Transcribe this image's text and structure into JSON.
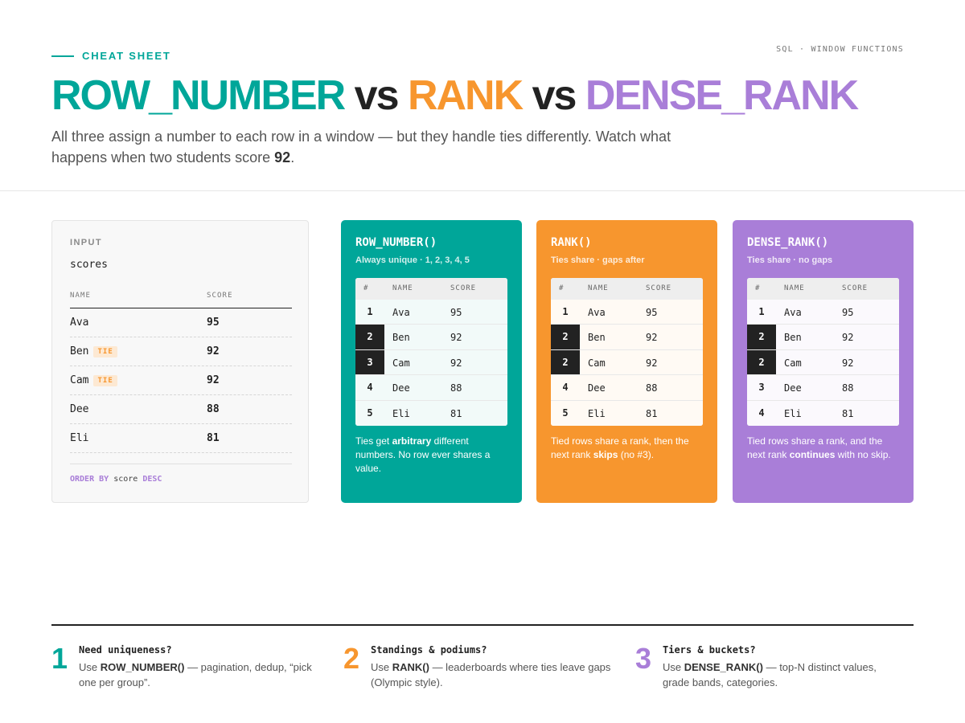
{
  "header": {
    "eyebrow": "CHEAT SHEET",
    "crumb": "SQL · WINDOW FUNCTIONS",
    "title_part1": "ROW_NUMBER",
    "title_vs1": " vs ",
    "title_part2": "RANK",
    "title_vs2": " vs ",
    "title_part3": "DENSE_RANK",
    "subtitle_before": "All three assign a number to each row in a window — but they handle ties differently. Watch what happens when two students score ",
    "subtitle_bold": "92",
    "subtitle_after": "."
  },
  "input": {
    "label": "INPUT",
    "table_name": "scores",
    "col_name": "NAME",
    "col_score": "SCORE",
    "tie_label": "TIE",
    "rows": [
      {
        "name": "Ava",
        "score": "95",
        "tie": false
      },
      {
        "name": "Ben",
        "score": "92",
        "tie": true
      },
      {
        "name": "Cam",
        "score": "92",
        "tie": true
      },
      {
        "name": "Dee",
        "score": "88",
        "tie": false
      },
      {
        "name": "Eli",
        "score": "81",
        "tie": false
      }
    ],
    "order_kw1": "ORDER BY",
    "order_col": " score ",
    "order_kw2": "DESC"
  },
  "cards": [
    {
      "key": "row_number",
      "title": "ROW_NUMBER()",
      "subtitle": "Always unique · 1, 2, 3, 4, 5",
      "col_rank": "#",
      "col_name": "NAME",
      "col_score": "SCORE",
      "rows": [
        {
          "rank": "1",
          "name": "Ava",
          "score": "95",
          "tied": false
        },
        {
          "rank": "2",
          "name": "Ben",
          "score": "92",
          "tied": true
        },
        {
          "rank": "3",
          "name": "Cam",
          "score": "92",
          "tied": true
        },
        {
          "rank": "4",
          "name": "Dee",
          "score": "88",
          "tied": false
        },
        {
          "rank": "5",
          "name": "Eli",
          "score": "81",
          "tied": false
        }
      ],
      "desc_before": "Ties get ",
      "desc_bold": "arbitrary",
      "desc_after": " different numbers. No row ever shares a value."
    },
    {
      "key": "rank",
      "title": "RANK()",
      "subtitle": "Ties share · gaps after",
      "col_rank": "#",
      "col_name": "NAME",
      "col_score": "SCORE",
      "rows": [
        {
          "rank": "1",
          "name": "Ava",
          "score": "95",
          "tied": false
        },
        {
          "rank": "2",
          "name": "Ben",
          "score": "92",
          "tied": true
        },
        {
          "rank": "2",
          "name": "Cam",
          "score": "92",
          "tied": true
        },
        {
          "rank": "4",
          "name": "Dee",
          "score": "88",
          "tied": false
        },
        {
          "rank": "5",
          "name": "Eli",
          "score": "81",
          "tied": false
        }
      ],
      "desc_before": "Tied rows share a rank, then the next rank ",
      "desc_bold": "skips",
      "desc_after": " (no #3)."
    },
    {
      "key": "dense_rank",
      "title": "DENSE_RANK()",
      "subtitle": "Ties share · no gaps",
      "col_rank": "#",
      "col_name": "NAME",
      "col_score": "SCORE",
      "rows": [
        {
          "rank": "1",
          "name": "Ava",
          "score": "95",
          "tied": false
        },
        {
          "rank": "2",
          "name": "Ben",
          "score": "92",
          "tied": true
        },
        {
          "rank": "2",
          "name": "Cam",
          "score": "92",
          "tied": true
        },
        {
          "rank": "3",
          "name": "Dee",
          "score": "88",
          "tied": false
        },
        {
          "rank": "4",
          "name": "Eli",
          "score": "81",
          "tied": false
        }
      ],
      "desc_before": "Tied rows share a rank, and the next rank ",
      "desc_bold": "continues",
      "desc_after": " with no skip."
    }
  ],
  "tips": [
    {
      "num": "1",
      "title": "Need uniqueness?",
      "fn": "ROW_NUMBER()",
      "prefix": "Use ",
      "text": " — pagination, dedup, “pick one per group”."
    },
    {
      "num": "2",
      "title": "Standings & podiums?",
      "fn": "RANK()",
      "prefix": "Use ",
      "text": " — leaderboards where ties leave gaps (Olympic style)."
    },
    {
      "num": "3",
      "title": "Tiers & buckets?",
      "fn": "DENSE_RANK()",
      "prefix": "Use ",
      "text": " — top-N distinct values, grade bands, categories."
    }
  ],
  "colors": {
    "row_number": "#00a699",
    "rank": "#f7962e",
    "dense_rank": "#a97ed8",
    "ink": "#222222"
  }
}
